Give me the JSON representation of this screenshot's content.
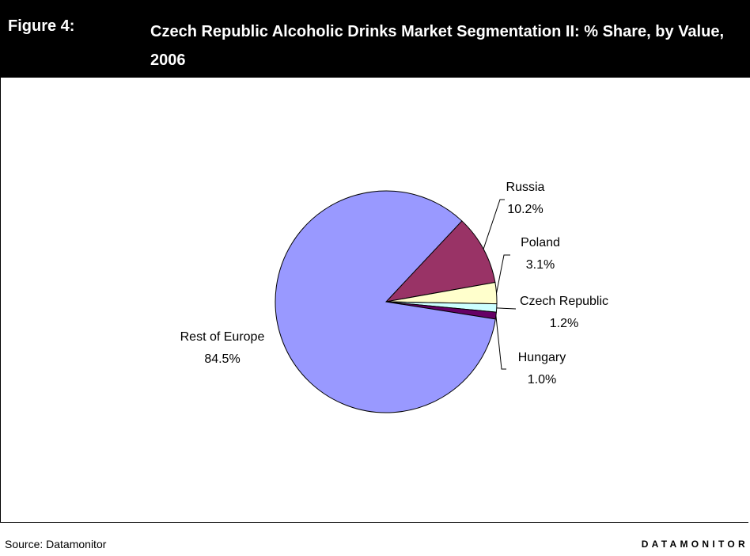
{
  "figure_label": "Figure 4:",
  "chart_data": {
    "type": "pie",
    "title": "Czech Republic Alcoholic Drinks Market Segmentation II: % Share, by Value, 2006",
    "categories": [
      "Russia",
      "Poland",
      "Czech Republic",
      "Hungary",
      "Rest of Europe"
    ],
    "values": [
      10.2,
      3.1,
      1.2,
      1.0,
      84.5
    ],
    "value_labels": [
      "10.2%",
      "3.1%",
      "1.2%",
      "1.0%",
      "84.5%"
    ],
    "colors": [
      "#993366",
      "#ffffcc",
      "#ccffff",
      "#660066",
      "#9999ff"
    ]
  },
  "footer": {
    "source": "Source: Datamonitor",
    "brand": "DATAMONITOR"
  }
}
